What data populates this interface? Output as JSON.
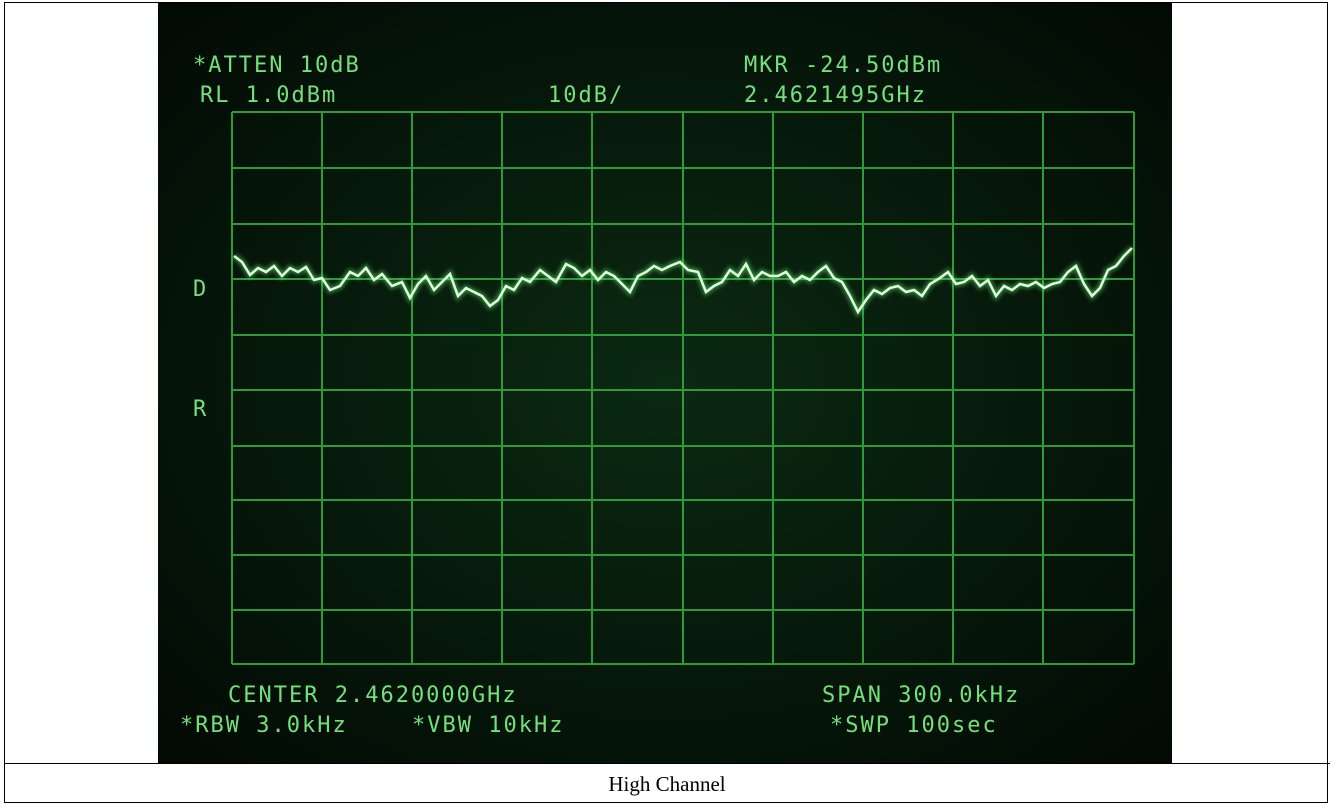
{
  "screen": {
    "atten": "*ATTEN 10dB",
    "ref_level": "RL 1.0dBm",
    "scale": "10dB/",
    "marker_level": "MKR -24.50dBm",
    "marker_freq": "2.4621495GHz",
    "side_d": "D",
    "side_r": "R",
    "center": "CENTER 2.4620000GHz",
    "span": "SPAN 300.0kHz",
    "rbw": "*RBW 3.0kHz",
    "vbw": "*VBW 10kHz",
    "sweep": "*SWP 100sec"
  },
  "caption": "High Channel"
}
